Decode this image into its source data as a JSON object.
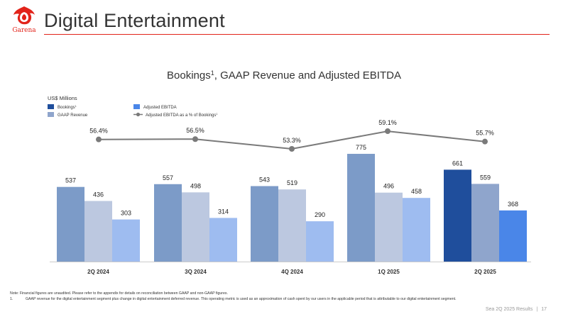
{
  "header": {
    "logo_text": "Garena",
    "page_title": "Digital Entertainment"
  },
  "chart_data": {
    "type": "bar",
    "title": "Bookings",
    "title_sup": "1",
    "title_rest": ", GAAP Revenue and Adjusted EBITDA",
    "unit_label": "US$ Millions",
    "categories": [
      "2Q 2024",
      "3Q 2024",
      "4Q 2024",
      "1Q 2025",
      "2Q 2025"
    ],
    "series": [
      {
        "name": "Bookings",
        "name_sup": "1",
        "values": [
          537,
          557,
          543,
          775,
          661
        ],
        "colors": [
          "#7c9bc8",
          "#7c9bc8",
          "#7c9bc8",
          "#7c9bc8",
          "#1f4e9c"
        ]
      },
      {
        "name": "GAAP Revenue",
        "values": [
          436,
          498,
          519,
          496,
          559
        ],
        "colors": [
          "#bcc8e0",
          "#bcc8e0",
          "#bcc8e0",
          "#bcc8e0",
          "#8fa5cc"
        ]
      },
      {
        "name": "Adjusted EBITDA",
        "values": [
          303,
          314,
          290,
          458,
          368
        ],
        "colors": [
          "#9ebcf0",
          "#9ebcf0",
          "#9ebcf0",
          "#9ebcf0",
          "#4a86e8"
        ]
      }
    ],
    "line_series": {
      "name": "Adjusted EBITDA as a % of Bookings",
      "name_sup": "1",
      "values": [
        56.4,
        56.5,
        53.3,
        59.1,
        55.7
      ],
      "labels": [
        "56.4%",
        "56.5%",
        "53.3%",
        "59.1%",
        "55.7%"
      ],
      "color": "#7a7a7a"
    },
    "legend_swatch_colors": [
      "#1f4e9c",
      "#8fa5cc",
      "#4a86e8"
    ],
    "ylim": [
      0,
      900
    ],
    "legend_position": "top-left",
    "grid": false
  },
  "notes": {
    "note_text": "Note: Financial figures are unaudited. Please refer to the appendix for details on reconciliation between GAAP and non-GAAP figures.",
    "footnote_num": "1.",
    "footnote_text": "GAAP revenue for the digital entertainment segment plus change in digital entertainment deferred revenue. This operating metric is used as an approximation of cash spent by our users in the applicable period that is attributable to our digital entertainment segment."
  },
  "footer": {
    "left": "Sea 2Q 2025 Results",
    "page": "17"
  }
}
